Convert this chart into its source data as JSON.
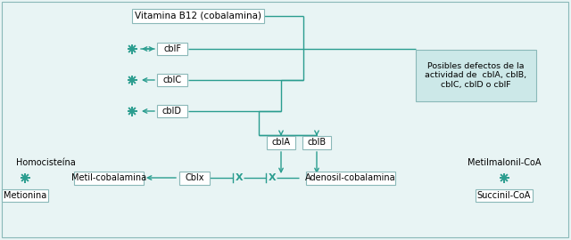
{
  "bg_color": "#e8f4f4",
  "teal": "#2a9d8f",
  "box_ec": "#8ab8b8",
  "box_fc": "#ffffff",
  "posibles_fc": "#cce8e8",
  "vitamina_b12_label": "Vitamina B12 (cobalamina)",
  "cblF_label": "cblF",
  "cblC_label": "cblC",
  "cblD_label": "cblD",
  "cblA_label": "cblA",
  "cblB_label": "cblB",
  "cblx_label": "Cblx",
  "homo_label": "Homocisteína",
  "metil_cob_label": "Metil-cobalamina",
  "meti_label": "Metionina",
  "metilmalonil_label": "Metilmalonil-CoA",
  "adenosil_label": "Adenosil-cobalamina",
  "succinil_label": "Succinil-CoA",
  "posibles_label": "Posibles defectos de la\nactividad de  cblA, cblB,\ncblC, cblD o cblF"
}
